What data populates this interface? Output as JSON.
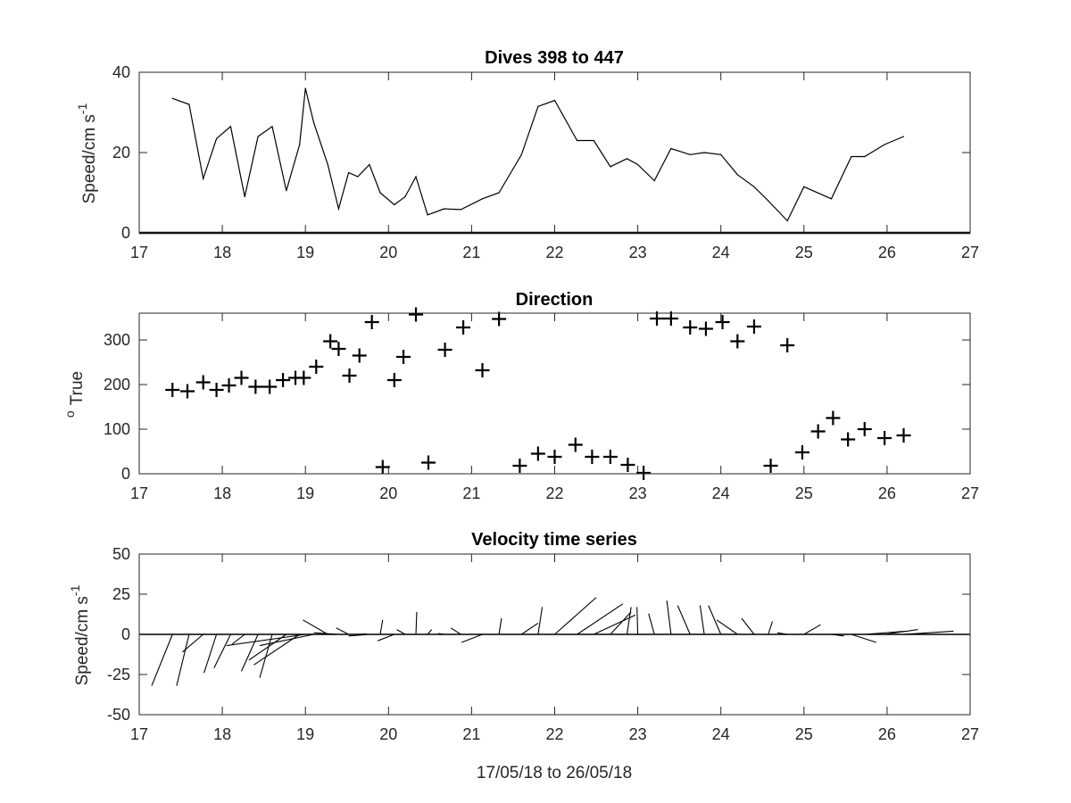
{
  "chart_data": [
    {
      "type": "line",
      "title": "Dives 398 to 447",
      "ylabel_main": "Speed/cm s",
      "ylabel_sup": "-1",
      "xlabel": "",
      "xlim": [
        17,
        27
      ],
      "ylim": [
        0,
        40
      ],
      "xticks": [
        "17",
        "18",
        "19",
        "20",
        "21",
        "22",
        "23",
        "24",
        "25",
        "26",
        "27"
      ],
      "yticks": [
        "0",
        "20",
        "40"
      ],
      "series": [
        {
          "x": [
            17.4,
            17.6,
            17.77,
            17.93,
            18.1,
            18.27,
            18.43,
            18.6,
            18.77,
            18.93,
            19.0,
            19.1,
            19.27,
            19.4,
            19.52,
            19.63,
            19.77,
            19.9,
            20.07,
            20.2,
            20.33,
            20.47,
            20.67,
            20.87,
            21.13,
            21.33,
            21.6,
            21.8,
            22.0,
            22.27,
            22.47,
            22.67,
            22.87,
            23.0,
            23.2,
            23.4,
            23.63,
            23.8,
            24.0,
            24.2,
            24.4,
            24.57,
            24.8,
            25.0,
            25.33,
            25.57,
            25.73,
            25.97,
            26.2
          ],
          "y": [
            33.5,
            32,
            13.5,
            23.5,
            26.5,
            9,
            24,
            26.5,
            10.5,
            22,
            36,
            27.5,
            17,
            6,
            15,
            14,
            17,
            10,
            7,
            9,
            14,
            4.5,
            6,
            5.8,
            8.5,
            10,
            19.5,
            31.5,
            33,
            23,
            23,
            16.5,
            18.5,
            17,
            13,
            21,
            19.5,
            20,
            19.5,
            14.5,
            11.5,
            8,
            3,
            11.5,
            8.5,
            19,
            19,
            22,
            24
          ]
        }
      ]
    },
    {
      "type": "scatter",
      "title": "Direction",
      "ylabel_main": "True",
      "ylabel_sup": "o",
      "xlabel": "",
      "xlim": [
        17,
        27
      ],
      "ylim": [
        0,
        360
      ],
      "xticks": [
        "17",
        "18",
        "19",
        "20",
        "21",
        "22",
        "23",
        "24",
        "25",
        "26",
        "27"
      ],
      "yticks": [
        "0",
        "100",
        "200",
        "300"
      ],
      "marker": "+",
      "series": [
        {
          "x": [
            17.4,
            17.58,
            17.77,
            17.93,
            18.08,
            18.23,
            18.4,
            18.57,
            18.73,
            18.88,
            18.98,
            19.13,
            19.3,
            19.4,
            19.53,
            19.65,
            19.8,
            19.93,
            20.07,
            20.18,
            20.33,
            20.48,
            20.68,
            20.9,
            21.13,
            21.33,
            21.58,
            21.8,
            22.0,
            22.25,
            22.45,
            22.67,
            22.88,
            23.07,
            23.23,
            23.4,
            23.63,
            23.82,
            24.02,
            24.2,
            24.4,
            24.6,
            24.8,
            24.98,
            25.17,
            25.35,
            25.53,
            25.73,
            25.97,
            26.2
          ],
          "y": [
            188,
            185,
            205,
            188,
            198,
            215,
            195,
            195,
            210,
            215,
            215,
            240,
            297,
            280,
            220,
            265,
            340,
            15,
            210,
            262,
            357,
            25,
            278,
            328,
            232,
            347,
            18,
            45,
            38,
            65,
            38,
            38,
            20,
            2,
            348,
            348,
            328,
            325,
            340,
            297,
            330,
            18,
            288,
            48,
            95,
            125,
            77,
            100,
            80,
            86
          ]
        }
      ]
    },
    {
      "type": "quiver",
      "title": "Velocity time series",
      "ylabel_main": "Speed/cm s",
      "ylabel_sup": "-1",
      "xlabel": "17/05/18 to 26/05/18",
      "xlim": [
        17,
        27
      ],
      "ylim": [
        -50,
        50
      ],
      "xticks": [
        "17",
        "18",
        "19",
        "20",
        "21",
        "22",
        "23",
        "24",
        "25",
        "26",
        "27"
      ],
      "yticks": [
        "-50",
        "-25",
        "0",
        "25",
        "50"
      ],
      "vectors": [
        {
          "x": 17.4,
          "u": -0.25,
          "v": -32
        },
        {
          "x": 17.6,
          "u": -0.15,
          "v": -32
        },
        {
          "x": 17.77,
          "u": -0.25,
          "v": -11
        },
        {
          "x": 17.93,
          "u": -0.15,
          "v": -24
        },
        {
          "x": 18.1,
          "u": -0.2,
          "v": -21
        },
        {
          "x": 18.27,
          "u": -0.15,
          "v": -6
        },
        {
          "x": 18.43,
          "u": -0.2,
          "v": -23
        },
        {
          "x": 18.6,
          "u": -0.15,
          "v": -27
        },
        {
          "x": 18.77,
          "u": -0.45,
          "v": -16
        },
        {
          "x": 18.93,
          "u": -0.55,
          "v": -19
        },
        {
          "x": 19.0,
          "u": -0.95,
          "v": -7
        },
        {
          "x": 19.1,
          "u": -0.65,
          "v": -7
        },
        {
          "x": 19.27,
          "u": -0.3,
          "v": 9
        },
        {
          "x": 19.4,
          "u": -0.3,
          "v": 1
        },
        {
          "x": 19.52,
          "u": -0.15,
          "v": 4
        },
        {
          "x": 19.63,
          "u": 0.1,
          "v": 0.3
        },
        {
          "x": 19.77,
          "u": -0.25,
          "v": -1
        },
        {
          "x": 19.9,
          "u": 0.03,
          "v": 9
        },
        {
          "x": 20.07,
          "u": -0.2,
          "v": -4
        },
        {
          "x": 20.2,
          "u": -0.1,
          "v": 3
        },
        {
          "x": 20.33,
          "u": 0.01,
          "v": 14
        },
        {
          "x": 20.47,
          "u": 0.05,
          "v": 3
        },
        {
          "x": 20.67,
          "u": -0.07,
          "v": 0.5
        },
        {
          "x": 20.87,
          "u": -0.12,
          "v": 4
        },
        {
          "x": 21.13,
          "u": -0.25,
          "v": -5
        },
        {
          "x": 21.33,
          "u": 0.03,
          "v": 10
        },
        {
          "x": 21.6,
          "u": 0.2,
          "v": 7
        },
        {
          "x": 21.8,
          "u": 0.05,
          "v": 17
        },
        {
          "x": 22.0,
          "u": 0.5,
          "v": 23
        },
        {
          "x": 22.27,
          "u": 0.55,
          "v": 19
        },
        {
          "x": 22.47,
          "u": 0.5,
          "v": 12
        },
        {
          "x": 22.67,
          "u": 0.25,
          "v": 14
        },
        {
          "x": 22.87,
          "u": 0.05,
          "v": 17
        },
        {
          "x": 23.0,
          "u": -0.01,
          "v": 17
        },
        {
          "x": 23.2,
          "u": -0.07,
          "v": 13
        },
        {
          "x": 23.4,
          "u": -0.05,
          "v": 21
        },
        {
          "x": 23.63,
          "u": -0.15,
          "v": 18
        },
        {
          "x": 23.8,
          "u": -0.05,
          "v": 18
        },
        {
          "x": 24.0,
          "u": -0.15,
          "v": 18
        },
        {
          "x": 24.2,
          "u": -0.25,
          "v": 9
        },
        {
          "x": 24.4,
          "u": -0.15,
          "v": 10
        },
        {
          "x": 24.57,
          "u": 0.05,
          "v": 8
        },
        {
          "x": 24.8,
          "u": -0.12,
          "v": 1
        },
        {
          "x": 25.0,
          "u": 0.2,
          "v": 6
        },
        {
          "x": 25.33,
          "u": 0.15,
          "v": -1
        },
        {
          "x": 25.57,
          "u": 0.3,
          "v": -5
        },
        {
          "x": 25.73,
          "u": 0.5,
          "v": 2
        },
        {
          "x": 25.97,
          "u": 0.4,
          "v": 3
        },
        {
          "x": 26.2,
          "u": 0.6,
          "v": 2
        }
      ]
    }
  ]
}
